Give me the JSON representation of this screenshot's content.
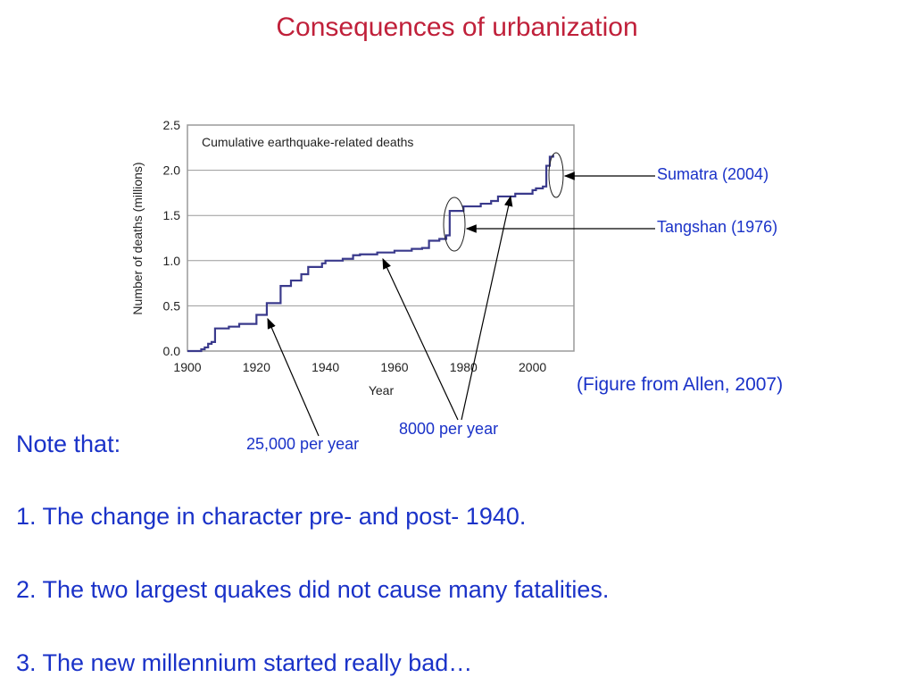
{
  "slide": {
    "title": "Consequences of urbanization",
    "source_note": "(Figure from Allen, 2007)",
    "note_heading": "Note that:",
    "points": [
      "1. The change in character pre- and post- 1940.",
      "2. The two largest quakes did not cause many fatalities.",
      "3. The new millennium started really bad…"
    ]
  },
  "annotations": {
    "sumatra": "Sumatra (2004)",
    "tangshan": "Tangshan (1976)",
    "rate_early": "25,000 per year",
    "rate_late": "8000 per year"
  },
  "chart_data": {
    "type": "line",
    "title": "Cumulative earthquake-related deaths",
    "xlabel": "Year",
    "ylabel": "Number of deaths (millions)",
    "xlim": [
      1900,
      2012
    ],
    "ylim": [
      0,
      2.5
    ],
    "x_ticks": [
      1900,
      1920,
      1940,
      1960,
      1980,
      2000
    ],
    "y_ticks": [
      "0.0",
      "0.5",
      "1.0",
      "1.5",
      "2.0",
      "2.5"
    ],
    "grid": "horizontal",
    "step": true,
    "color": "#3a3a8c",
    "series": [
      {
        "x": [
          1900,
          1904,
          1905,
          1906,
          1907,
          1908,
          1912,
          1915,
          1920,
          1923,
          1927,
          1930,
          1933,
          1935,
          1939,
          1940,
          1945,
          1948,
          1950,
          1955,
          1960,
          1965,
          1968,
          1970,
          1973,
          1975,
          1976,
          1980,
          1985,
          1988,
          1990,
          1995,
          2000,
          2001,
          2003,
          2004,
          2005,
          2006
        ],
        "y": [
          0.0,
          0.02,
          0.04,
          0.08,
          0.1,
          0.25,
          0.27,
          0.3,
          0.4,
          0.53,
          0.72,
          0.78,
          0.85,
          0.93,
          0.97,
          1.0,
          1.02,
          1.06,
          1.07,
          1.09,
          1.11,
          1.13,
          1.14,
          1.22,
          1.24,
          1.28,
          1.55,
          1.6,
          1.63,
          1.66,
          1.71,
          1.74,
          1.78,
          1.8,
          1.82,
          2.05,
          2.15,
          2.17
        ]
      }
    ],
    "callouts": [
      {
        "label": "Sumatra (2004)",
        "x": 2004,
        "y": 2.1,
        "type": "ellipse"
      },
      {
        "label": "Tangshan (1976)",
        "x": 1976,
        "y": 1.4,
        "type": "ellipse"
      },
      {
        "label": "25,000 per year",
        "x": 1922,
        "y": 0.35
      },
      {
        "label": "8000 per year",
        "x": [
          1953,
          1990
        ],
        "y": [
          1.02,
          1.72
        ]
      }
    ]
  }
}
